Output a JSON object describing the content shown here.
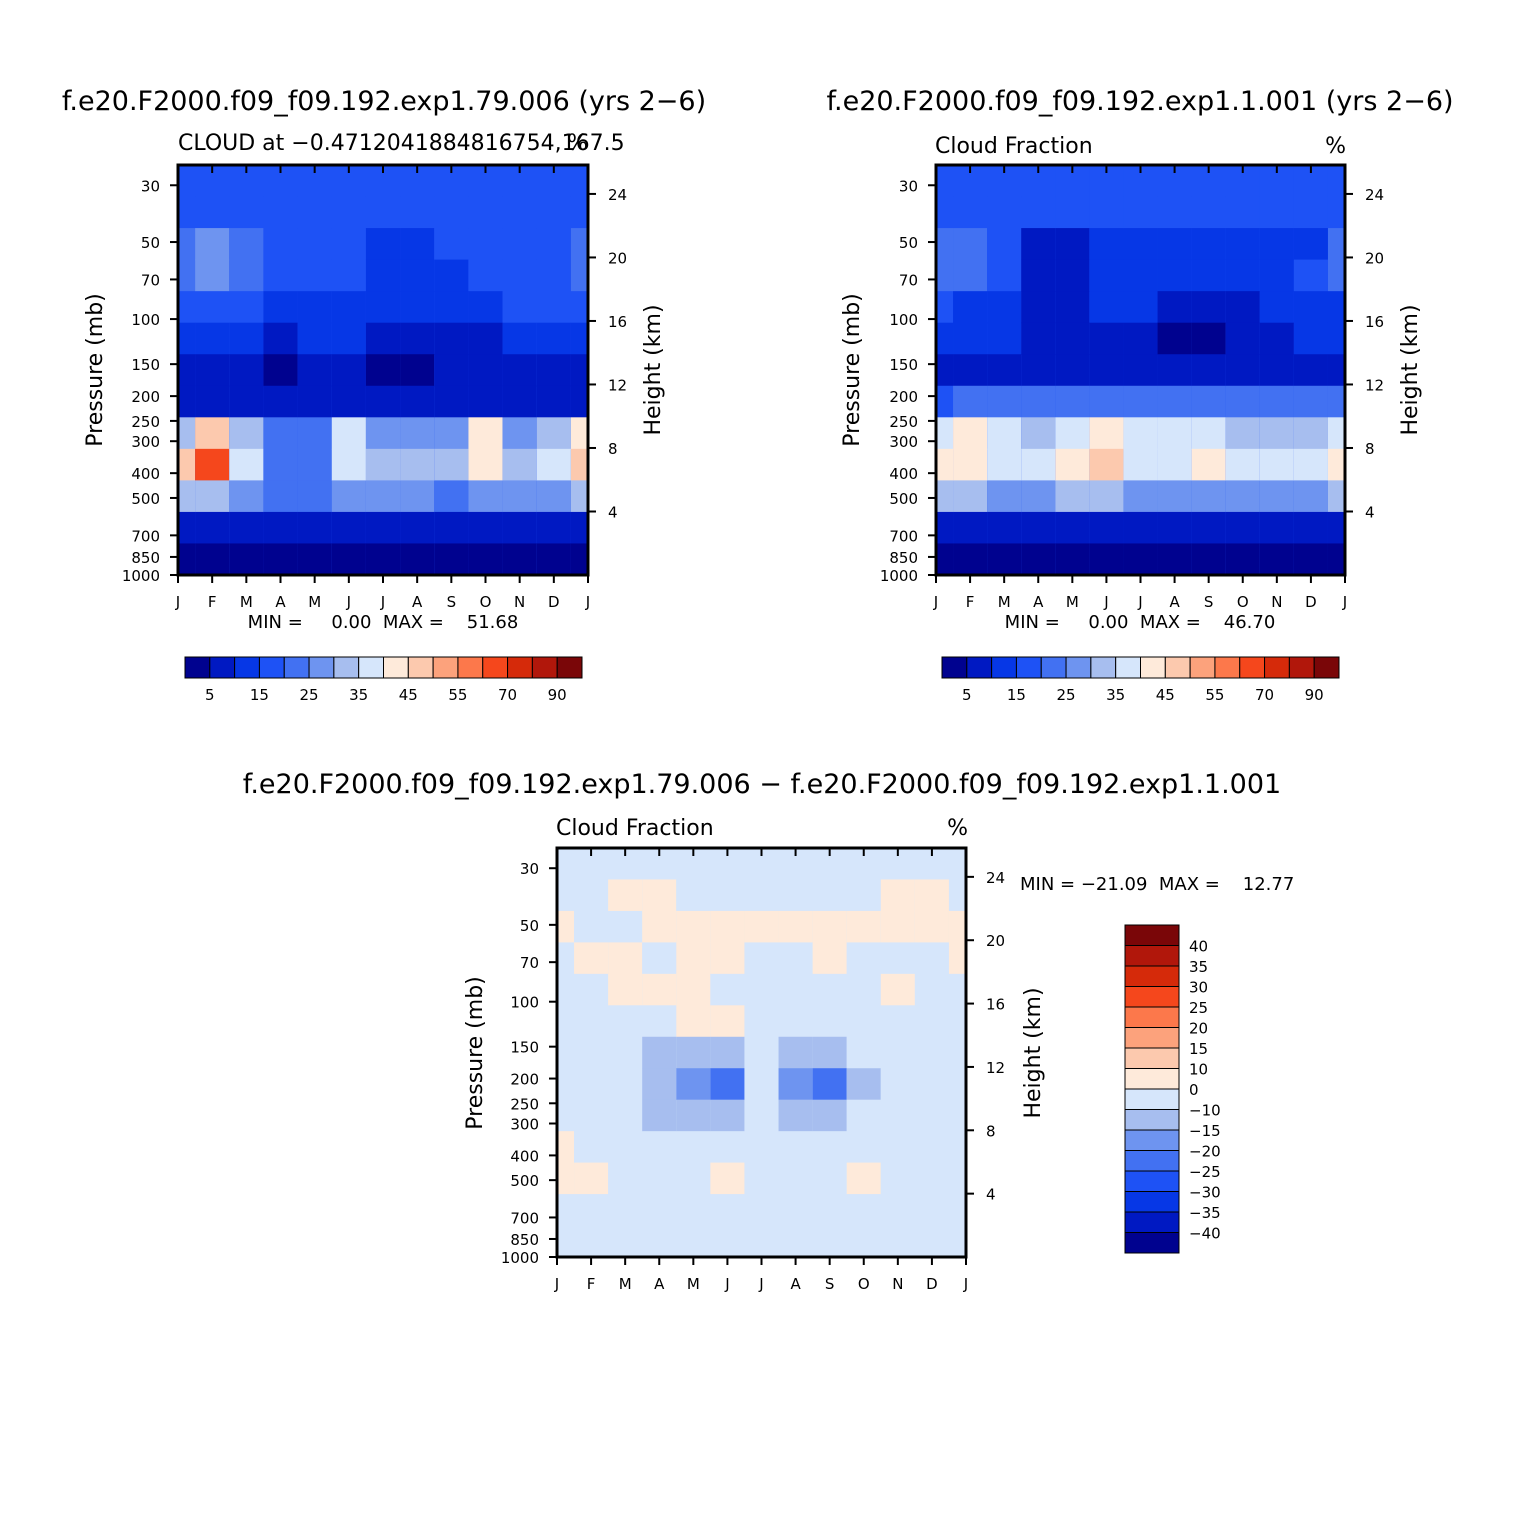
{
  "chart_data": [
    {
      "type": "heatmap",
      "title": "f.e20.F2000.f09_f09.192.exp1.79.006 (yrs 2−6)",
      "left_label": "CLOUD at −0.471204188481675​4,167.5",
      "right_label": "%",
      "x_ticks": [
        "J",
        "F",
        "M",
        "A",
        "M",
        "J",
        "J",
        "A",
        "S",
        "O",
        "N",
        "D",
        "J"
      ],
      "y_ticks": [
        30,
        50,
        70,
        100,
        150,
        200,
        250,
        300,
        400,
        500,
        700,
        850,
        1000
      ],
      "ylabel": "Pressure (mb)",
      "y2label": "Height (km)",
      "y2_ticks": [
        24,
        20,
        16,
        12,
        8,
        4
      ],
      "min_max": "MIN =     0.00  MAX =    51.68",
      "colorbar_labels": [
        "5",
        "15",
        "25",
        "35",
        "45",
        "55",
        "70",
        "90"
      ],
      "colorbar_colors": [
        "#00028f",
        "#0019c2",
        "#0637e6",
        "#1e52f5",
        "#4271f2",
        "#6e94f0",
        "#a7beef",
        "#d6e6fb",
        "#feeada",
        "#fcc9ae",
        "#fca27c",
        "#fc784b",
        "#f5471c",
        "#d52a0a",
        "#b1170b",
        "#7a0608"
      ],
      "grid": [
        [
          3,
          3,
          3,
          3,
          3,
          3,
          3,
          3,
          3,
          3,
          3,
          3,
          3
        ],
        [
          3,
          3,
          3,
          3,
          3,
          3,
          3,
          3,
          3,
          3,
          3,
          3,
          3
        ],
        [
          4,
          5,
          4,
          3,
          3,
          3,
          2,
          2,
          3,
          3,
          3,
          3,
          4
        ],
        [
          4,
          5,
          4,
          3,
          3,
          3,
          2,
          2,
          2,
          3,
          3,
          3,
          4
        ],
        [
          3,
          3,
          3,
          2,
          2,
          2,
          2,
          2,
          2,
          2,
          3,
          3,
          3
        ],
        [
          2,
          2,
          2,
          1,
          2,
          2,
          1,
          1,
          1,
          1,
          2,
          2,
          2
        ],
        [
          1,
          1,
          1,
          0,
          1,
          1,
          0,
          0,
          1,
          1,
          1,
          1,
          1
        ],
        [
          1,
          1,
          1,
          1,
          1,
          1,
          1,
          1,
          1,
          1,
          1,
          1,
          1
        ],
        [
          6,
          9,
          6,
          4,
          4,
          7,
          5,
          5,
          5,
          8,
          5,
          6,
          8
        ],
        [
          9,
          12,
          7,
          4,
          4,
          7,
          6,
          6,
          6,
          8,
          6,
          7,
          9
        ],
        [
          6,
          6,
          5,
          4,
          4,
          5,
          5,
          5,
          4,
          5,
          5,
          5,
          6
        ],
        [
          1,
          1,
          1,
          1,
          1,
          1,
          1,
          1,
          1,
          1,
          1,
          1,
          1
        ],
        [
          0,
          0,
          0,
          0,
          0,
          0,
          0,
          0,
          0,
          0,
          0,
          0,
          0
        ]
      ]
    },
    {
      "type": "heatmap",
      "title": "f.e20.F2000.f09_f09.192.exp1.1.001 (yrs 2−6)",
      "left_label": "Cloud Fraction",
      "right_label": "%",
      "x_ticks": [
        "J",
        "F",
        "M",
        "A",
        "M",
        "J",
        "J",
        "A",
        "S",
        "O",
        "N",
        "D",
        "J"
      ],
      "y_ticks": [
        30,
        50,
        70,
        100,
        150,
        200,
        250,
        300,
        400,
        500,
        700,
        850,
        1000
      ],
      "ylabel": "Pressure (mb)",
      "y2label": "Height (km)",
      "y2_ticks": [
        24,
        20,
        16,
        12,
        8,
        4
      ],
      "min_max": "MIN =     0.00  MAX =    46.70",
      "colorbar_labels": [
        "5",
        "15",
        "25",
        "35",
        "45",
        "55",
        "70",
        "90"
      ],
      "colorbar_colors": [
        "#00028f",
        "#0019c2",
        "#0637e6",
        "#1e52f5",
        "#4271f2",
        "#6e94f0",
        "#a7beef",
        "#d6e6fb",
        "#feeada",
        "#fcc9ae",
        "#fca27c",
        "#fc784b",
        "#f5471c",
        "#d52a0a",
        "#b1170b",
        "#7a0608"
      ],
      "grid": [
        [
          3,
          3,
          3,
          3,
          3,
          3,
          3,
          3,
          3,
          3,
          3,
          3,
          3
        ],
        [
          3,
          3,
          3,
          3,
          3,
          3,
          3,
          3,
          3,
          3,
          3,
          3,
          3
        ],
        [
          4,
          4,
          3,
          1,
          1,
          2,
          2,
          2,
          2,
          2,
          2,
          2,
          4
        ],
        [
          4,
          4,
          3,
          1,
          1,
          2,
          2,
          2,
          2,
          2,
          2,
          3,
          4
        ],
        [
          3,
          2,
          2,
          1,
          1,
          2,
          2,
          1,
          1,
          1,
          2,
          2,
          2
        ],
        [
          2,
          2,
          2,
          1,
          1,
          1,
          1,
          0,
          0,
          1,
          1,
          2,
          2
        ],
        [
          1,
          1,
          1,
          1,
          1,
          1,
          1,
          1,
          1,
          1,
          1,
          1,
          1
        ],
        [
          3,
          4,
          4,
          4,
          4,
          4,
          4,
          4,
          4,
          4,
          4,
          4,
          4
        ],
        [
          7,
          8,
          7,
          6,
          7,
          8,
          7,
          7,
          7,
          6,
          6,
          6,
          7
        ],
        [
          8,
          8,
          7,
          7,
          8,
          9,
          7,
          7,
          8,
          7,
          7,
          7,
          8
        ],
        [
          6,
          6,
          5,
          5,
          6,
          6,
          5,
          5,
          5,
          5,
          5,
          5,
          6
        ],
        [
          1,
          1,
          1,
          1,
          1,
          1,
          1,
          1,
          1,
          1,
          1,
          1,
          1
        ],
        [
          0,
          0,
          0,
          0,
          0,
          0,
          0,
          0,
          0,
          0,
          0,
          0,
          0
        ]
      ]
    },
    {
      "type": "heatmap",
      "title": "f.e20.F2000.f09_f09.192.exp1.79.006 − f.e20.F2000.f09_f09.192.exp1.1.001",
      "left_label": "Cloud Fraction",
      "right_label": "%",
      "x_ticks": [
        "J",
        "F",
        "M",
        "A",
        "M",
        "J",
        "J",
        "A",
        "S",
        "O",
        "N",
        "D",
        "J"
      ],
      "y_ticks": [
        30,
        50,
        70,
        100,
        150,
        200,
        250,
        300,
        400,
        500,
        700,
        850,
        1000
      ],
      "ylabel": "Pressure (mb)",
      "y2label": "Height (km)",
      "y2_ticks": [
        24,
        20,
        16,
        12,
        8,
        4
      ],
      "min_max": "MIN = −21.09  MAX =    12.77",
      "colorbar_labels": [
        "40",
        "35",
        "30",
        "25",
        "20",
        "15",
        "10",
        "0",
        "−10",
        "−15",
        "−20",
        "−25",
        "−30",
        "−35",
        "−40"
      ],
      "colorbar_colors": [
        "#7a0608",
        "#b1170b",
        "#d52a0a",
        "#f5471c",
        "#fc784b",
        "#fca27c",
        "#fcc9ae",
        "#feeada",
        "#d6e6fb",
        "#a7beef",
        "#6e94f0",
        "#4271f2",
        "#1e52f5",
        "#0637e6",
        "#0019c2",
        "#00028f"
      ],
      "grid": [
        [
          8,
          8,
          8,
          8,
          8,
          8,
          8,
          8,
          8,
          8,
          8,
          8,
          8
        ],
        [
          8,
          8,
          7,
          7,
          8,
          8,
          8,
          8,
          8,
          8,
          7,
          7,
          8
        ],
        [
          7,
          8,
          8,
          7,
          7,
          7,
          7,
          7,
          7,
          7,
          7,
          7,
          7
        ],
        [
          8,
          7,
          7,
          8,
          7,
          7,
          8,
          8,
          7,
          8,
          8,
          8,
          7
        ],
        [
          8,
          8,
          7,
          7,
          7,
          8,
          8,
          8,
          8,
          8,
          7,
          8,
          8
        ],
        [
          8,
          8,
          8,
          8,
          7,
          7,
          8,
          8,
          8,
          8,
          8,
          8,
          8
        ],
        [
          8,
          8,
          8,
          9,
          9,
          9,
          8,
          9,
          9,
          8,
          8,
          8,
          8
        ],
        [
          8,
          8,
          8,
          9,
          10,
          11,
          8,
          10,
          11,
          9,
          8,
          8,
          8
        ],
        [
          8,
          8,
          8,
          9,
          9,
          9,
          8,
          9,
          9,
          8,
          8,
          8,
          8
        ],
        [
          7,
          8,
          8,
          8,
          8,
          8,
          8,
          8,
          8,
          8,
          8,
          8,
          8
        ],
        [
          7,
          7,
          8,
          8,
          8,
          7,
          8,
          8,
          8,
          7,
          8,
          8,
          8
        ],
        [
          8,
          8,
          8,
          8,
          8,
          8,
          8,
          8,
          8,
          8,
          8,
          8,
          8
        ],
        [
          8,
          8,
          8,
          8,
          8,
          8,
          8,
          8,
          8,
          8,
          8,
          8,
          8
        ]
      ]
    }
  ]
}
